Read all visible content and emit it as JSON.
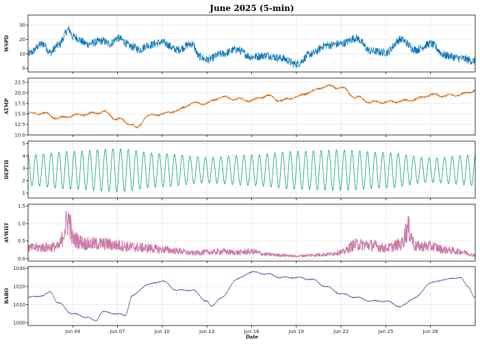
{
  "chart_data": {
    "type": "line",
    "title": "June 2025 (5-min)",
    "xlabel": "Date",
    "x_range": [
      "2025-06-01",
      "2025-07-01"
    ],
    "x_ticks": [
      {
        "date": "2025-06-04",
        "label": "Jun 04"
      },
      {
        "date": "2025-06-07",
        "label": "Jun 07"
      },
      {
        "date": "2025-06-10",
        "label": "Jun 10"
      },
      {
        "date": "2025-06-13",
        "label": "Jun 13"
      },
      {
        "date": "2025-06-16",
        "label": "Jun 16"
      },
      {
        "date": "2025-06-19",
        "label": "Jun 19"
      },
      {
        "date": "2025-06-22",
        "label": "Jun 22"
      },
      {
        "date": "2025-06-25",
        "label": "Jun 25"
      },
      {
        "date": "2025-06-28",
        "label": "Jun 28"
      }
    ],
    "grid": true,
    "panels": [
      {
        "ylabel": "WSPD",
        "color": "#0072B2",
        "ylim": [
          -2.5,
          37
        ],
        "yticks": [
          0,
          10,
          20,
          30
        ],
        "ytick_labels": [
          "0",
          "10",
          "20",
          "30"
        ],
        "kind": "noisy",
        "noise": 2.8,
        "points": [
          [
            "2025-06-01",
            10
          ],
          [
            "2025-06-02",
            17
          ],
          [
            "2025-06-02T12:00",
            11
          ],
          [
            "2025-06-03",
            16
          ],
          [
            "2025-06-03T18:00",
            27
          ],
          [
            "2025-06-04",
            22
          ],
          [
            "2025-06-05",
            17
          ],
          [
            "2025-06-06",
            19
          ],
          [
            "2025-06-06T12:00",
            17
          ],
          [
            "2025-06-07",
            21
          ],
          [
            "2025-06-08",
            15
          ],
          [
            "2025-06-08T12:00",
            13
          ],
          [
            "2025-06-09",
            16
          ],
          [
            "2025-06-10",
            18
          ],
          [
            "2025-06-11",
            13
          ],
          [
            "2025-06-12",
            17
          ],
          [
            "2025-06-12T12:00",
            8
          ],
          [
            "2025-06-13",
            6
          ],
          [
            "2025-06-14",
            10
          ],
          [
            "2025-06-15",
            13
          ],
          [
            "2025-06-16",
            8
          ],
          [
            "2025-06-17",
            9
          ],
          [
            "2025-06-18",
            7
          ],
          [
            "2025-06-19",
            3
          ],
          [
            "2025-06-20",
            10
          ],
          [
            "2025-06-21",
            16
          ],
          [
            "2025-06-22",
            17
          ],
          [
            "2025-06-23",
            21
          ],
          [
            "2025-06-24",
            12
          ],
          [
            "2025-06-25",
            11
          ],
          [
            "2025-06-26",
            20
          ],
          [
            "2025-06-27",
            13
          ],
          [
            "2025-06-28",
            17
          ],
          [
            "2025-06-29",
            9
          ],
          [
            "2025-06-30",
            7
          ],
          [
            "2025-07-01",
            5
          ]
        ]
      },
      {
        "ylabel": "ATMP",
        "color": "#D55E00",
        "ylim": [
          10,
          23.5
        ],
        "yticks": [
          10,
          12.5,
          15,
          17.5,
          20,
          22.5
        ],
        "ytick_labels": [
          "10.0",
          "12.5",
          "15.0",
          "17.5",
          "20.0",
          "22.5"
        ],
        "kind": "smooth",
        "noise": 0.45,
        "points": [
          [
            "2025-06-01",
            15
          ],
          [
            "2025-06-02",
            15.2
          ],
          [
            "2025-06-03",
            14
          ],
          [
            "2025-06-04",
            14.6
          ],
          [
            "2025-06-05",
            15
          ],
          [
            "2025-06-06",
            15.5
          ],
          [
            "2025-06-07",
            13.8
          ],
          [
            "2025-06-08",
            12.6
          ],
          [
            "2025-06-08T06:00",
            11.5
          ],
          [
            "2025-06-09",
            14.5
          ],
          [
            "2025-06-10",
            15
          ],
          [
            "2025-06-11",
            15.8
          ],
          [
            "2025-06-12",
            17.5
          ],
          [
            "2025-06-13",
            17.6
          ],
          [
            "2025-06-14",
            19
          ],
          [
            "2025-06-15",
            18.5
          ],
          [
            "2025-06-16",
            18.2
          ],
          [
            "2025-06-17",
            19.3
          ],
          [
            "2025-06-18",
            18.2
          ],
          [
            "2025-06-19",
            19
          ],
          [
            "2025-06-20",
            20.3
          ],
          [
            "2025-06-21",
            21.6
          ],
          [
            "2025-06-22",
            21.2
          ],
          [
            "2025-06-23",
            19
          ],
          [
            "2025-06-24",
            17.8
          ],
          [
            "2025-06-25",
            17.8
          ],
          [
            "2025-06-26",
            18
          ],
          [
            "2025-06-27",
            18.5
          ],
          [
            "2025-06-28",
            19.5
          ],
          [
            "2025-06-29",
            19.3
          ],
          [
            "2025-06-30",
            19.6
          ],
          [
            "2025-07-01",
            20.6
          ]
        ]
      },
      {
        "ylabel": "DEPTH",
        "color": "#009E73",
        "ylim": [
          0.6,
          5.2
        ],
        "yticks": [
          1,
          2,
          3,
          4,
          5
        ],
        "ytick_labels": [
          "1",
          "2",
          "3",
          "4",
          "5"
        ],
        "kind": "tide",
        "mean": 2.85,
        "period_hours": 12.42,
        "points": [
          [
            "2025-06-01",
            1.6
          ],
          [
            "2025-06-04",
            1.3
          ],
          [
            "2025-06-07",
            1.1
          ],
          [
            "2025-06-10",
            1.5
          ],
          [
            "2025-06-13",
            1.8
          ],
          [
            "2025-06-16",
            1.6
          ],
          [
            "2025-06-19",
            1.3
          ],
          [
            "2025-06-22",
            1.2
          ],
          [
            "2025-06-25",
            1.4
          ],
          [
            "2025-06-28",
            1.85
          ],
          [
            "2025-07-01",
            1.6
          ]
        ]
      },
      {
        "ylabel": "AVWHT",
        "color": "#CC79A7",
        "ylim": [
          -0.07,
          1.55
        ],
        "yticks": [
          0,
          0.5,
          1,
          1.5
        ],
        "ytick_labels": [
          "0.0",
          "0.5",
          "1.0",
          "1.5"
        ],
        "kind": "band",
        "noise": 0.5,
        "points": [
          [
            "2025-06-01",
            0.3
          ],
          [
            "2025-06-02",
            0.32
          ],
          [
            "2025-06-03",
            0.33
          ],
          [
            "2025-06-03T18:00",
            1.1
          ],
          [
            "2025-06-04",
            0.55
          ],
          [
            "2025-06-05",
            0.42
          ],
          [
            "2025-06-06",
            0.42
          ],
          [
            "2025-06-07",
            0.38
          ],
          [
            "2025-06-08",
            0.33
          ],
          [
            "2025-06-09",
            0.3
          ],
          [
            "2025-06-10",
            0.26
          ],
          [
            "2025-06-11",
            0.22
          ],
          [
            "2025-06-12",
            0.16
          ],
          [
            "2025-06-13",
            0.18
          ],
          [
            "2025-06-14",
            0.2
          ],
          [
            "2025-06-15",
            0.17
          ],
          [
            "2025-06-16",
            0.2
          ],
          [
            "2025-06-17",
            0.12
          ],
          [
            "2025-06-18",
            0.1
          ],
          [
            "2025-06-19",
            0.07
          ],
          [
            "2025-06-20",
            0.1
          ],
          [
            "2025-06-21",
            0.12
          ],
          [
            "2025-06-22",
            0.18
          ],
          [
            "2025-06-23",
            0.4
          ],
          [
            "2025-06-24",
            0.38
          ],
          [
            "2025-06-25",
            0.3
          ],
          [
            "2025-06-26",
            0.4
          ],
          [
            "2025-06-26T12:00",
            0.85
          ],
          [
            "2025-06-27",
            0.35
          ],
          [
            "2025-06-28",
            0.35
          ],
          [
            "2025-06-29",
            0.25
          ],
          [
            "2025-06-30",
            0.2
          ],
          [
            "2025-07-01",
            0.1
          ]
        ]
      },
      {
        "ylabel": "BARO",
        "color": "#6A3D9A",
        "ylim": [
          998.5,
          1031
        ],
        "yticks": [
          1000,
          1010,
          1020,
          1030
        ],
        "ytick_labels": [
          "1000",
          "1010",
          "1020",
          "1030"
        ],
        "kind": "smooth",
        "noise": 0.5,
        "points": [
          [
            "2025-06-01",
            1014
          ],
          [
            "2025-06-02",
            1015
          ],
          [
            "2025-06-02T12:00",
            1017
          ],
          [
            "2025-06-03",
            1011
          ],
          [
            "2025-06-04",
            1005
          ],
          [
            "2025-06-05",
            1003
          ],
          [
            "2025-06-05T12:00",
            1001
          ],
          [
            "2025-06-06",
            1006
          ],
          [
            "2025-06-07",
            1005
          ],
          [
            "2025-06-07T12:00",
            1004
          ],
          [
            "2025-06-08",
            1015
          ],
          [
            "2025-06-09",
            1021
          ],
          [
            "2025-06-10",
            1023
          ],
          [
            "2025-06-11",
            1018
          ],
          [
            "2025-06-12",
            1018
          ],
          [
            "2025-06-13",
            1012
          ],
          [
            "2025-06-13T06:00",
            1009
          ],
          [
            "2025-06-14",
            1014
          ],
          [
            "2025-06-15",
            1024
          ],
          [
            "2025-06-16",
            1028
          ],
          [
            "2025-06-17",
            1027
          ],
          [
            "2025-06-18",
            1025
          ],
          [
            "2025-06-19",
            1025
          ],
          [
            "2025-06-20",
            1024
          ],
          [
            "2025-06-21",
            1020
          ],
          [
            "2025-06-22",
            1016
          ],
          [
            "2025-06-23",
            1014
          ],
          [
            "2025-06-24",
            1012
          ],
          [
            "2025-06-25",
            1012
          ],
          [
            "2025-06-26",
            1009
          ],
          [
            "2025-06-27",
            1014
          ],
          [
            "2025-06-28",
            1022
          ],
          [
            "2025-06-29",
            1024
          ],
          [
            "2025-06-30",
            1025
          ],
          [
            "2025-06-30T12:00",
            1020
          ],
          [
            "2025-07-01",
            1014
          ]
        ]
      }
    ]
  }
}
